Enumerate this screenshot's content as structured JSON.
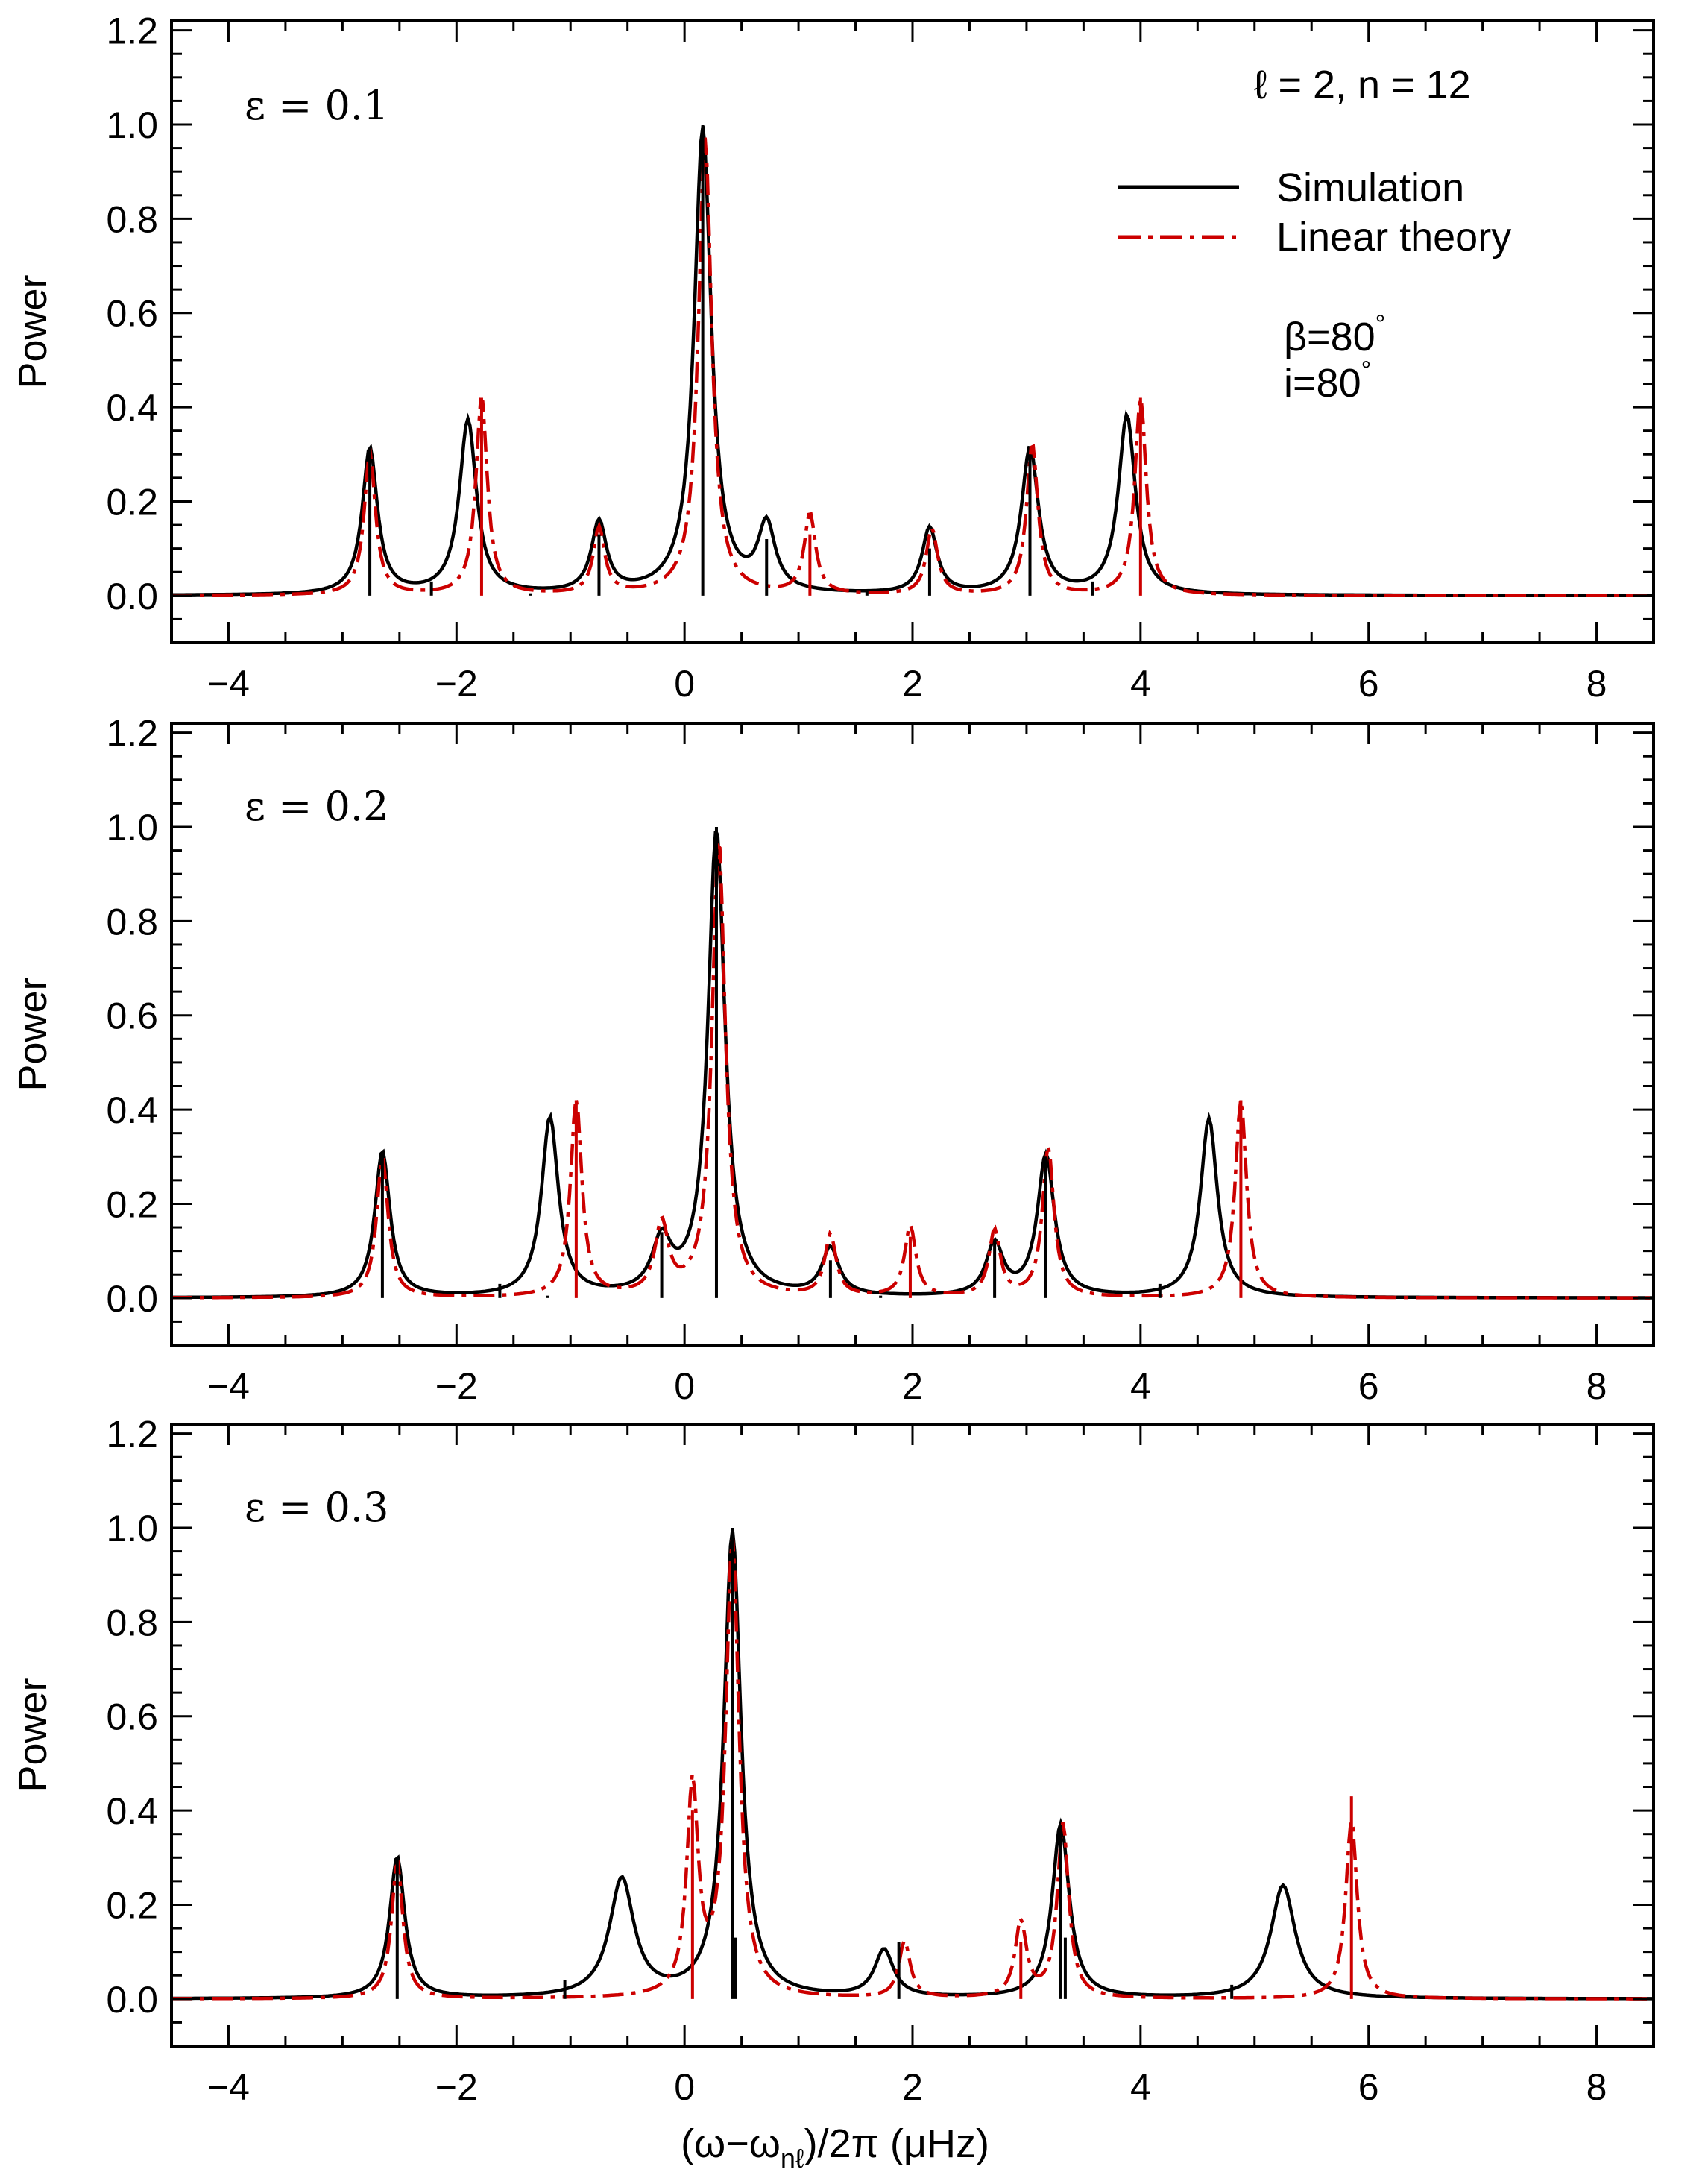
{
  "figure": {
    "axis_label_x": "(ω−ω",
    "axis_label_x_sub": "nℓ",
    "axis_label_x_rest": ")/2π (μHz)",
    "legend": [
      {
        "label": "Simulation",
        "color": "#000000",
        "dash": "solid"
      },
      {
        "label": "Linear theory",
        "color": "#cc0000",
        "dash": "dashdot"
      }
    ],
    "mode_label": "ℓ = 2, n = 12",
    "beta_label": "β=80",
    "incl_label": "i=80",
    "deg_symbol": "°"
  },
  "chart_data": [
    {
      "type": "line",
      "panel_label": "ε = 0.1",
      "ylabel": "Power",
      "xlabel": "",
      "xlim": [
        -4.5,
        8.5
      ],
      "ylim": [
        -0.1,
        1.22
      ],
      "xticks": [
        -4,
        -2,
        0,
        2,
        4,
        6,
        8
      ],
      "yticks": [
        0.0,
        0.2,
        0.4,
        0.6,
        0.8,
        1.0,
        1.2
      ],
      "xtick_labels": [
        "−4",
        "−2",
        "0",
        "2",
        "4",
        "6",
        "8"
      ],
      "ytick_labels": [
        "0.0",
        "0.2",
        "0.4",
        "0.6",
        "0.8",
        "1.0",
        "1.2"
      ],
      "series": [
        {
          "name": "Simulation",
          "color": "#000000",
          "peaks": [
            [
              -2.76,
              0.31,
              0.08
            ],
            [
              -1.9,
              0.37,
              0.09
            ],
            [
              -0.75,
              0.15,
              0.08
            ],
            [
              0.16,
              0.99,
              0.09
            ],
            [
              0.72,
              0.14,
              0.09
            ],
            [
              2.15,
              0.14,
              0.08
            ],
            [
              3.03,
              0.31,
              0.09
            ],
            [
              3.88,
              0.38,
              0.09
            ]
          ],
          "baseline": 0.0
        },
        {
          "name": "Linear theory",
          "color": "#cc0000",
          "peaks": [
            [
              -2.76,
              0.3,
              0.06
            ],
            [
              -1.78,
              0.42,
              0.06
            ],
            [
              -0.75,
              0.14,
              0.06
            ],
            [
              0.18,
              0.97,
              0.07
            ],
            [
              1.1,
              0.17,
              0.06
            ],
            [
              2.17,
              0.14,
              0.06
            ],
            [
              3.05,
              0.32,
              0.06
            ],
            [
              4.0,
              0.42,
              0.06
            ]
          ],
          "baseline": 0.0
        }
      ],
      "stems_black": [
        [
          -2.76,
          0.31
        ],
        [
          -2.22,
          0.03
        ],
        [
          -1.35,
          0.005
        ],
        [
          -0.75,
          0.13
        ],
        [
          0.16,
          1.0
        ],
        [
          0.72,
          0.12
        ],
        [
          1.6,
          0.01
        ],
        [
          2.15,
          0.1
        ],
        [
          3.03,
          0.3
        ],
        [
          3.58,
          0.03
        ]
      ],
      "stems_red": [
        [
          -1.78,
          0.42
        ],
        [
          1.1,
          0.13
        ],
        [
          4.0,
          0.42
        ]
      ]
    },
    {
      "type": "line",
      "panel_label": "ε = 0.2",
      "ylabel": "Power",
      "xlabel": "",
      "xlim": [
        -4.5,
        8.5
      ],
      "ylim": [
        -0.1,
        1.22
      ],
      "xticks": [
        -4,
        -2,
        0,
        2,
        4,
        6,
        8
      ],
      "yticks": [
        0.0,
        0.2,
        0.4,
        0.6,
        0.8,
        1.0,
        1.2
      ],
      "xtick_labels": [
        "−4",
        "−2",
        "0",
        "2",
        "4",
        "6",
        "8"
      ],
      "ytick_labels": [
        "0.0",
        "0.2",
        "0.4",
        "0.6",
        "0.8",
        "1.0",
        "1.2"
      ],
      "series": [
        {
          "name": "Simulation",
          "color": "#000000",
          "peaks": [
            [
              -2.65,
              0.31,
              0.08
            ],
            [
              -1.18,
              0.38,
              0.09
            ],
            [
              -0.2,
              0.11,
              0.1
            ],
            [
              0.28,
              0.99,
              0.09
            ],
            [
              1.28,
              0.1,
              0.09
            ],
            [
              2.72,
              0.11,
              0.09
            ],
            [
              3.17,
              0.3,
              0.09
            ],
            [
              4.6,
              0.38,
              0.09
            ]
          ],
          "baseline": 0.0
        },
        {
          "name": "Linear theory",
          "color": "#cc0000",
          "peaks": [
            [
              -2.65,
              0.3,
              0.06
            ],
            [
              -0.95,
              0.42,
              0.06
            ],
            [
              -0.2,
              0.15,
              0.07
            ],
            [
              0.3,
              0.97,
              0.07
            ],
            [
              1.28,
              0.13,
              0.06
            ],
            [
              1.98,
              0.15,
              0.06
            ],
            [
              2.72,
              0.14,
              0.06
            ],
            [
              3.19,
              0.32,
              0.06
            ],
            [
              4.88,
              0.42,
              0.06
            ]
          ],
          "baseline": 0.0
        }
      ],
      "stems_black": [
        [
          -2.65,
          0.3
        ],
        [
          -1.62,
          0.03
        ],
        [
          -1.2,
          0.005
        ],
        [
          -0.2,
          0.14
        ],
        [
          0.28,
          1.0
        ],
        [
          1.28,
          0.08
        ],
        [
          1.72,
          0.005
        ],
        [
          2.72,
          0.12
        ],
        [
          3.17,
          0.3
        ],
        [
          4.17,
          0.03
        ]
      ],
      "stems_red": [
        [
          -0.95,
          0.42
        ],
        [
          1.98,
          0.13
        ],
        [
          4.88,
          0.42
        ]
      ]
    },
    {
      "type": "line",
      "panel_label": "ε = 0.3",
      "ylabel": "Power",
      "xlabel": "(ω−ωnℓ)/2π (μHz)",
      "xlim": [
        -4.5,
        8.5
      ],
      "ylim": [
        -0.1,
        1.22
      ],
      "xticks": [
        -4,
        -2,
        0,
        2,
        4,
        6,
        8
      ],
      "yticks": [
        0.0,
        0.2,
        0.4,
        0.6,
        0.8,
        1.0,
        1.2
      ],
      "xtick_labels": [
        "−4",
        "−2",
        "0",
        "2",
        "4",
        "6",
        "8"
      ],
      "ytick_labels": [
        "0.0",
        "0.2",
        "0.4",
        "0.6",
        "0.8",
        "1.0",
        "1.2"
      ],
      "series": [
        {
          "name": "Simulation",
          "color": "#000000",
          "peaks": [
            [
              -2.52,
              0.3,
              0.08
            ],
            [
              -0.55,
              0.25,
              0.13
            ],
            [
              0.42,
              0.99,
              0.09
            ],
            [
              1.75,
              0.1,
              0.1
            ],
            [
              3.3,
              0.37,
              0.09
            ],
            [
              5.25,
              0.24,
              0.13
            ]
          ],
          "baseline": 0.0
        },
        {
          "name": "Linear theory",
          "color": "#cc0000",
          "peaks": [
            [
              -2.52,
              0.29,
              0.06
            ],
            [
              0.07,
              0.44,
              0.06
            ],
            [
              0.42,
              0.97,
              0.07
            ],
            [
              1.93,
              0.12,
              0.06
            ],
            [
              2.95,
              0.16,
              0.06
            ],
            [
              3.32,
              0.37,
              0.06
            ],
            [
              5.85,
              0.38,
              0.06
            ]
          ],
          "baseline": 0.0
        }
      ],
      "stems_black": [
        [
          -2.52,
          0.3
        ],
        [
          -1.05,
          0.04
        ],
        [
          0.42,
          1.0
        ],
        [
          0.45,
          0.13
        ],
        [
          1.88,
          0.12
        ],
        [
          3.3,
          0.37
        ],
        [
          3.34,
          0.13
        ],
        [
          4.8,
          0.03
        ]
      ],
      "stems_red": [
        [
          0.07,
          0.4
        ],
        [
          2.95,
          0.12
        ],
        [
          5.85,
          0.43
        ]
      ]
    }
  ]
}
